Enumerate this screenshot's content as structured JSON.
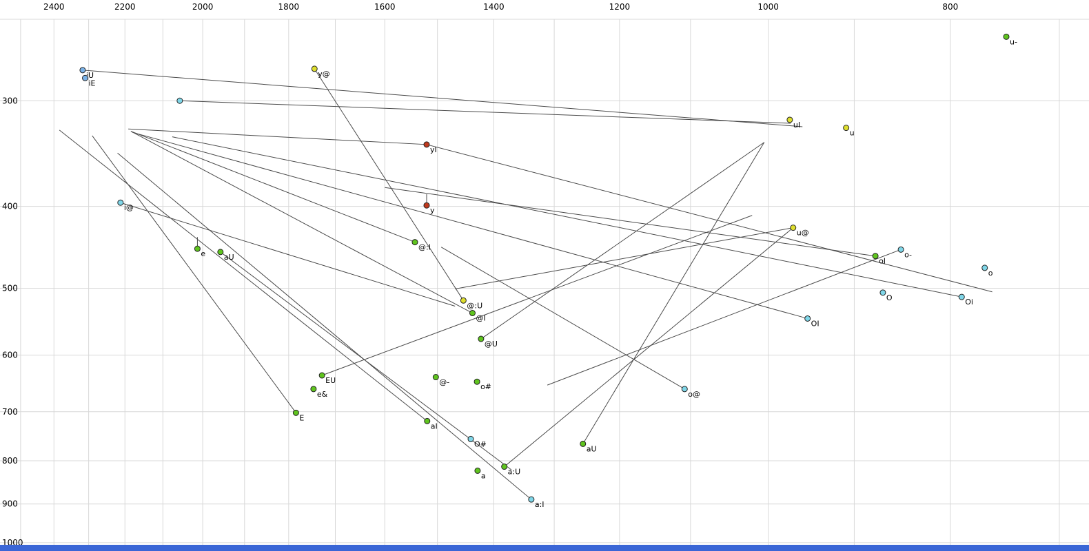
{
  "chart_data": {
    "type": "scatter",
    "description": "Vowel formant chart (F2 horizontal reversed log scale, F1 vertical reversed log scale) with diphthong trajectory lines",
    "axes": {
      "x": {
        "scale": "log",
        "reversed": true,
        "left_value": 2564,
        "right_value": 675,
        "tick_labels": [
          2400,
          2200,
          2000,
          1800,
          1600,
          1400,
          1200,
          1000,
          800
        ],
        "grid_min": 700,
        "grid_max": 2500,
        "grid_step": 100
      },
      "y": {
        "scale": "log",
        "reversed": true,
        "top_value": 228,
        "bottom_value": 1023,
        "tick_labels": [
          300,
          400,
          500,
          600,
          700,
          800,
          900,
          1000
        ],
        "grid_min": 300,
        "grid_max": 1000,
        "grid_step": 100
      }
    },
    "points": [
      {
        "label": "u-",
        "f2": 747,
        "f1": 252,
        "color": "green"
      },
      {
        "label": "iU",
        "f2": 2317,
        "f1": 276,
        "color": "blue"
      },
      {
        "label": "iE",
        "f2": 2310,
        "f1": 282,
        "color": "blue"
      },
      {
        "label": "",
        "f2": 2057,
        "f1": 300,
        "color": "cyan"
      },
      {
        "label": "y@",
        "f2": 1744,
        "f1": 275,
        "color": "yellow"
      },
      {
        "label": "uI",
        "f2": 974,
        "f1": 316,
        "color": "yellow"
      },
      {
        "label": "u",
        "f2": 909,
        "f1": 323,
        "color": "yellow"
      },
      {
        "label": "yI",
        "f2": 1520,
        "f1": 338,
        "color": "red"
      },
      {
        "label": "i@",
        "f2": 2212,
        "f1": 396,
        "color": "cyan"
      },
      {
        "label": "y",
        "f2": 1520,
        "f1": 399,
        "color": "red"
      },
      {
        "label": "u@",
        "f2": 970,
        "f1": 424,
        "color": "yellow"
      },
      {
        "label": "o-",
        "f2": 850,
        "f1": 450,
        "color": "cyan"
      },
      {
        "label": "oI",
        "f2": 877,
        "f1": 458,
        "color": "green"
      },
      {
        "label": "e",
        "f2": 2013,
        "f1": 449,
        "color": "green"
      },
      {
        "label": "aU",
        "f2": 1957,
        "f1": 453,
        "color": "green"
      },
      {
        "label": "@:I",
        "f2": 1542,
        "f1": 441,
        "color": "green"
      },
      {
        "label": "o",
        "f2": 767,
        "f1": 473,
        "color": "cyan"
      },
      {
        "label": "@:U",
        "f2": 1453,
        "f1": 517,
        "color": "yellow"
      },
      {
        "label": "@I",
        "f2": 1437,
        "f1": 535,
        "color": "green"
      },
      {
        "label": "O",
        "f2": 869,
        "f1": 506,
        "color": "cyan"
      },
      {
        "label": "Oi",
        "f2": 789,
        "f1": 512,
        "color": "cyan"
      },
      {
        "label": "OI",
        "f2": 953,
        "f1": 543,
        "color": "cyan"
      },
      {
        "label": "@U",
        "f2": 1422,
        "f1": 574,
        "color": "green"
      },
      {
        "label": "EU",
        "f2": 1728,
        "f1": 634,
        "color": "green"
      },
      {
        "label": "@-",
        "f2": 1503,
        "f1": 637,
        "color": "green"
      },
      {
        "label": "o#",
        "f2": 1429,
        "f1": 645,
        "color": "green"
      },
      {
        "label": "e&",
        "f2": 1746,
        "f1": 658,
        "color": "green"
      },
      {
        "label": "o@",
        "f2": 1108,
        "f1": 658,
        "color": "cyan"
      },
      {
        "label": "E",
        "f2": 1784,
        "f1": 702,
        "color": "green"
      },
      {
        "label": "aI",
        "f2": 1519,
        "f1": 718,
        "color": "green"
      },
      {
        "label": "O#",
        "f2": 1440,
        "f1": 754,
        "color": "cyan"
      },
      {
        "label": "aU",
        "f2": 1255,
        "f1": 764,
        "color": "green"
      },
      {
        "label": "a",
        "f2": 1428,
        "f1": 822,
        "color": "green"
      },
      {
        "label": "a:U",
        "f2": 1382,
        "f1": 813,
        "color": "green"
      },
      {
        "label": "a:I",
        "f2": 1337,
        "f1": 889,
        "color": "cyan"
      }
    ],
    "segments": [
      [
        2317,
        276,
        959,
        322
      ],
      [
        2057,
        300,
        973,
        319
      ],
      [
        2191,
        324,
        1520,
        338
      ],
      [
        1744,
        275,
        1453,
        517
      ],
      [
        1542,
        441,
        2184,
        326
      ],
      [
        1519,
        718,
        2384,
        325
      ],
      [
        1337,
        889,
        2220,
        346
      ],
      [
        1382,
        813,
        970,
        424
      ],
      [
        1255,
        764,
        1005,
        336
      ],
      [
        953,
        543,
        2180,
        327
      ],
      [
        789,
        512,
        2076,
        331
      ],
      [
        1108,
        658,
        1493,
        447
      ],
      [
        970,
        424,
        1468,
        501
      ],
      [
        2212,
        396,
        1468,
        525
      ],
      [
        1422,
        574,
        1005,
        336
      ],
      [
        1437,
        535,
        2184,
        326
      ],
      [
        850,
        450,
        1311,
        651
      ],
      [
        1728,
        634,
        1020,
        410
      ],
      [
        1957,
        453,
        1370,
        820
      ],
      [
        1520,
        338,
        760,
        505
      ],
      [
        2013,
        435,
        2013,
        449
      ],
      [
        1520,
        387,
        1520,
        399
      ],
      [
        877,
        458,
        1600,
        380
      ],
      [
        1784,
        702,
        2290,
        330
      ]
    ],
    "colors": {
      "green": "#5fc41e",
      "cyan": "#7fd6e8",
      "blue": "#7ab2e8",
      "yellow": "#dede2e",
      "red": "#c03a1e",
      "line": "#4a4a4a",
      "grid": "#d8d8d8",
      "text": "#000000",
      "point_stroke": "#222222",
      "bottom_bar": "#3a66d6",
      "background": "#ffffff"
    }
  }
}
